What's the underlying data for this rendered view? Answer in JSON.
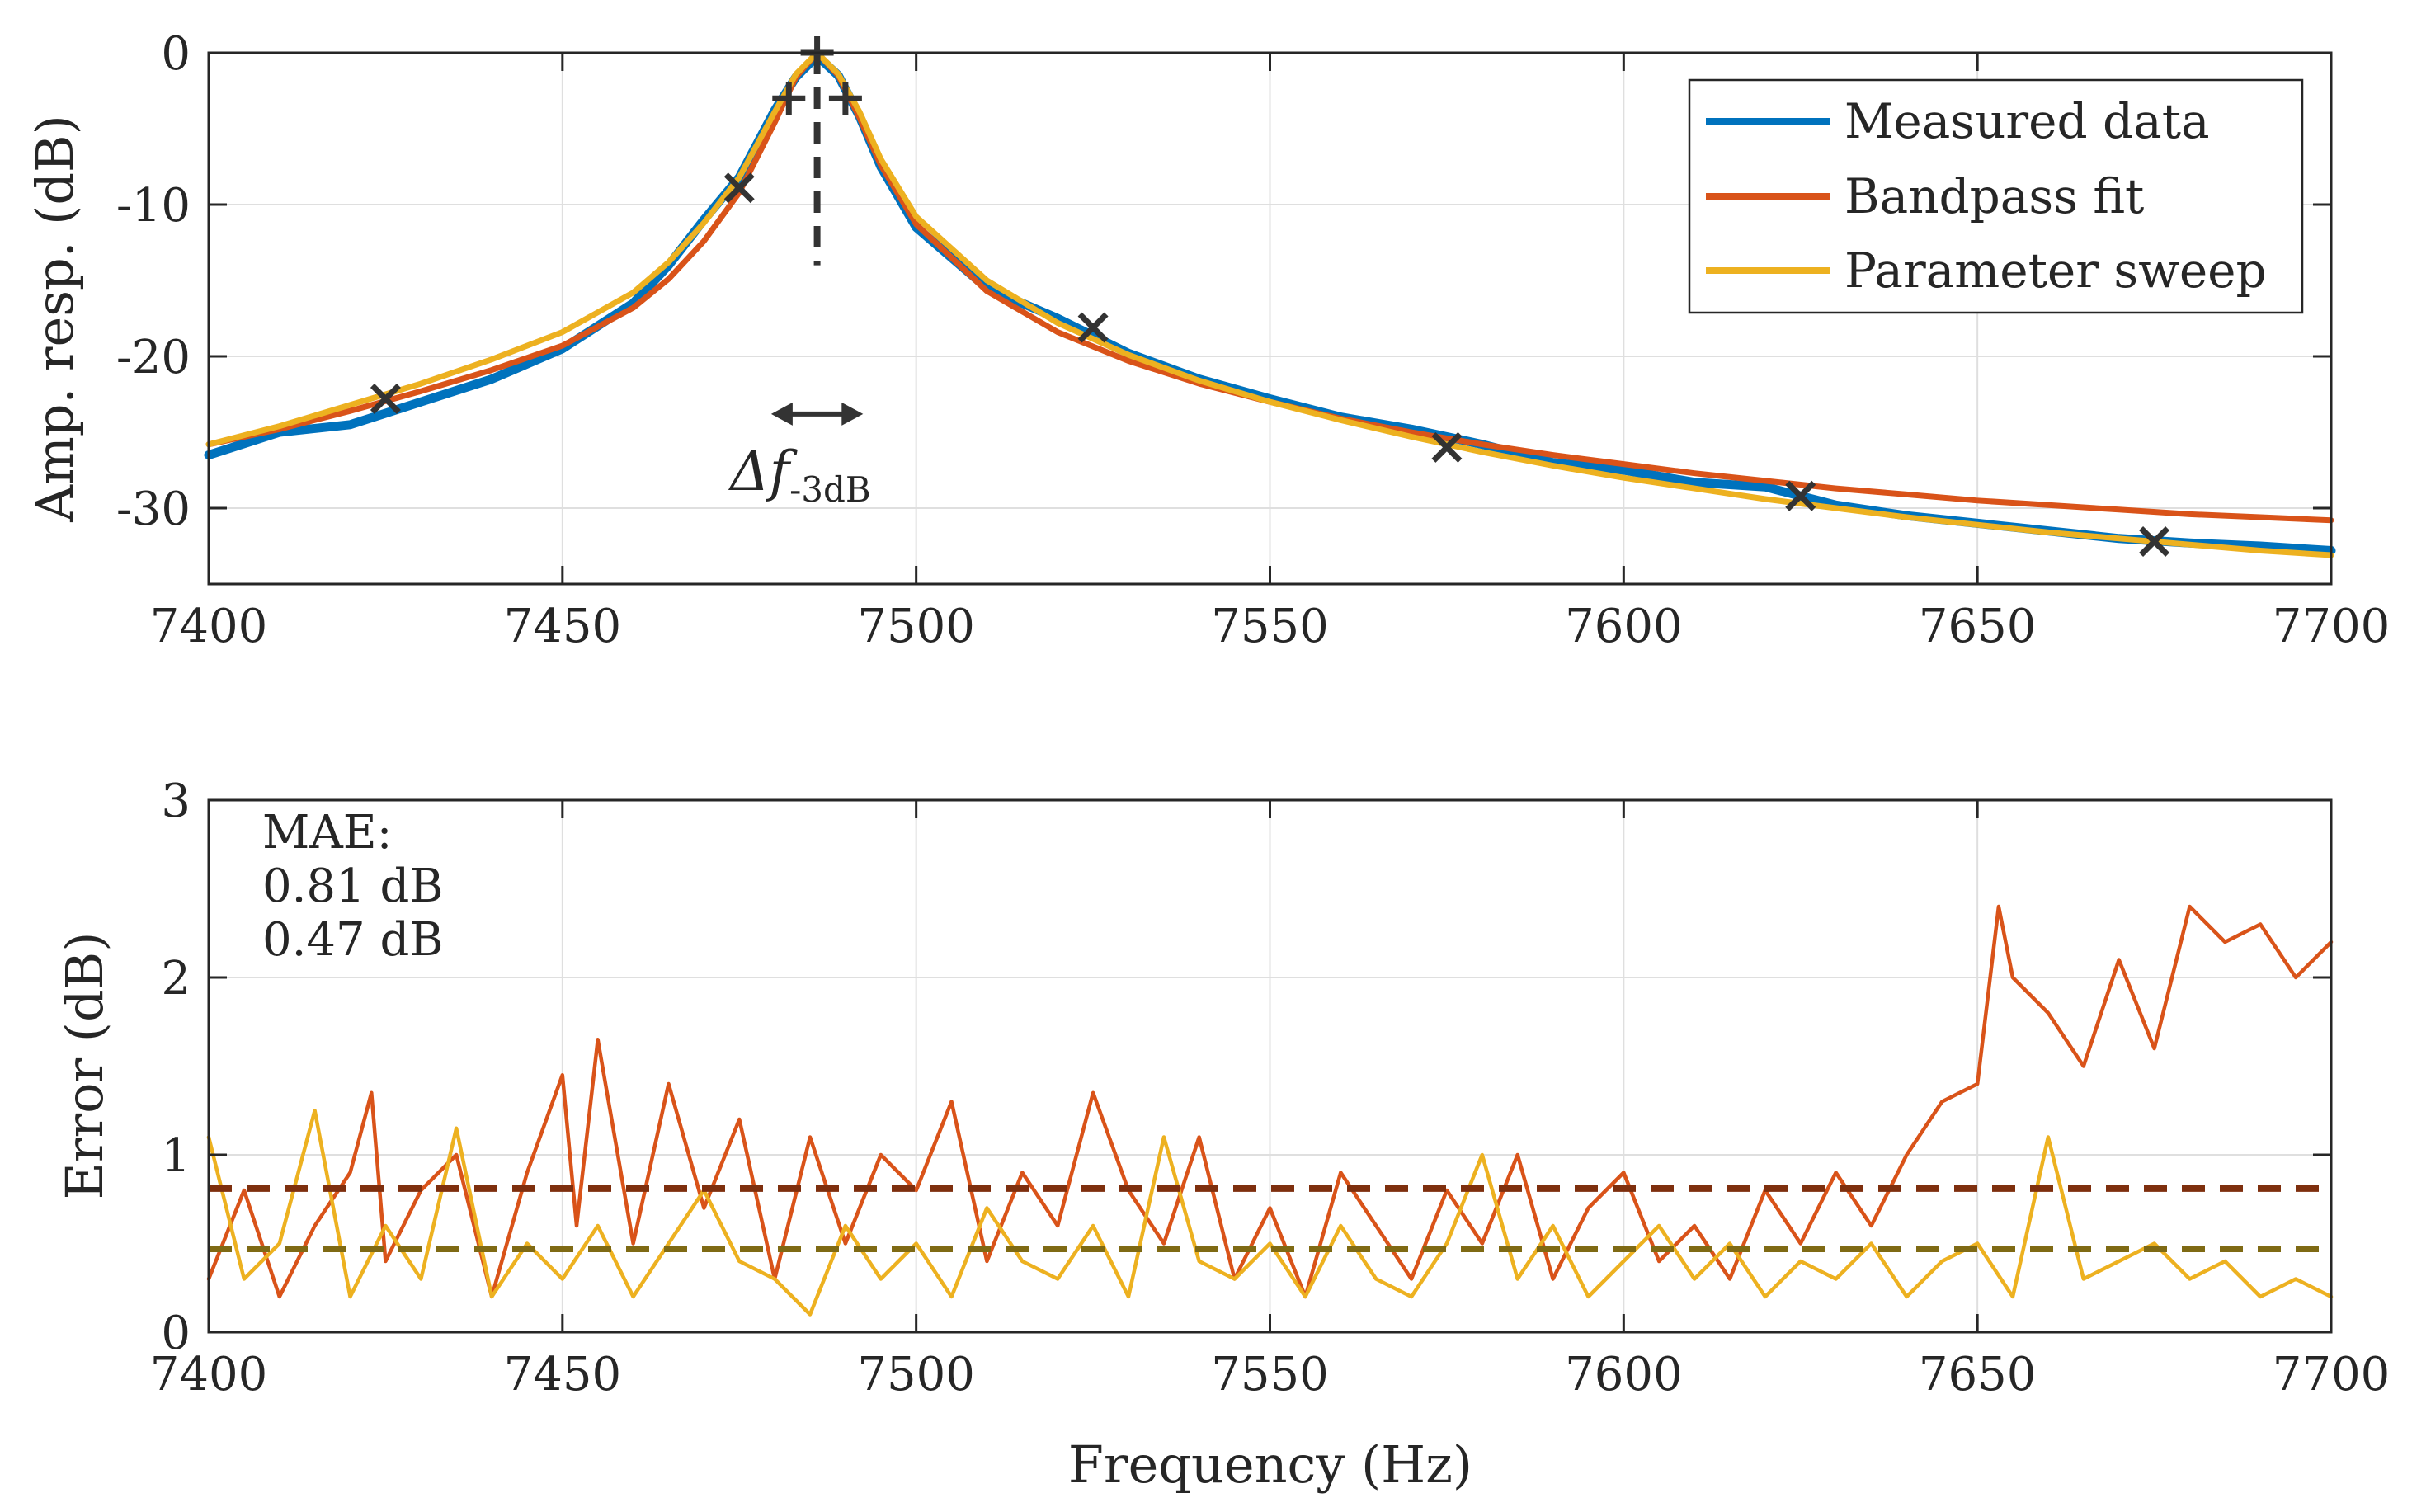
{
  "colors": {
    "measured": "#0072BD",
    "bandpass": "#D95319",
    "sweep": "#EDB120",
    "marker": "#333333",
    "mae_bandpass_line": "#7E2F0E",
    "mae_sweep_line": "#7F6A14",
    "grid": "#dfdfdf",
    "axis": "#262626"
  },
  "chart_data": [
    {
      "id": "amplitude-response",
      "type": "line",
      "xlabel": "",
      "ylabel": "Amp. resp. (dB)",
      "xlim": [
        7400,
        7700
      ],
      "ylim": [
        -35,
        0
      ],
      "xticks": [
        7400,
        7450,
        7500,
        7550,
        7600,
        7650,
        7700
      ],
      "xtick_labels": [
        "7400",
        "7450",
        "7500",
        "7550",
        "7600",
        "7650",
        "7700"
      ],
      "yticks": [
        0,
        -10,
        -20,
        -30
      ],
      "ytick_labels": [
        "0",
        "-10",
        "-20",
        "-30"
      ],
      "grid": true,
      "legend": {
        "location": "top-right",
        "entries": [
          "Measured data",
          "Bandpass fit",
          "Parameter sweep"
        ]
      },
      "series": [
        {
          "name": "Measured data",
          "x": [
            7400,
            7410,
            7420,
            7430,
            7440,
            7450,
            7460,
            7465,
            7470,
            7475,
            7480,
            7483,
            7486,
            7489,
            7492,
            7495,
            7500,
            7510,
            7520,
            7530,
            7540,
            7550,
            7560,
            7570,
            7580,
            7590,
            7600,
            7610,
            7620,
            7630,
            7640,
            7650,
            7660,
            7670,
            7680,
            7690,
            7700
          ],
          "y": [
            -26.5,
            -25.0,
            -24.5,
            -23.0,
            -21.5,
            -19.5,
            -16.5,
            -14.0,
            -11.0,
            -8.2,
            -3.8,
            -1.6,
            -0.2,
            -1.5,
            -4.2,
            -7.5,
            -11.5,
            -15.5,
            -17.5,
            -19.8,
            -21.5,
            -22.8,
            -24.0,
            -24.8,
            -25.8,
            -27.0,
            -27.5,
            -28.3,
            -28.6,
            -29.8,
            -30.5,
            -31.0,
            -31.5,
            -32.0,
            -32.3,
            -32.5,
            -32.8
          ]
        },
        {
          "name": "Bandpass fit",
          "x": [
            7400,
            7410,
            7420,
            7430,
            7440,
            7450,
            7460,
            7465,
            7470,
            7475,
            7480,
            7483,
            7486,
            7489,
            7492,
            7495,
            7500,
            7510,
            7520,
            7530,
            7540,
            7550,
            7560,
            7570,
            7580,
            7590,
            7600,
            7610,
            7620,
            7630,
            7640,
            7650,
            7660,
            7670,
            7680,
            7690,
            7700
          ],
          "y": [
            -25.8,
            -24.8,
            -23.6,
            -22.3,
            -20.9,
            -19.3,
            -16.8,
            -14.9,
            -12.4,
            -9.2,
            -4.6,
            -1.6,
            0.0,
            -1.5,
            -4.3,
            -7.4,
            -11.3,
            -15.7,
            -18.4,
            -20.3,
            -21.8,
            -23.0,
            -24.1,
            -25.0,
            -25.8,
            -26.5,
            -27.1,
            -27.7,
            -28.2,
            -28.7,
            -29.1,
            -29.5,
            -29.8,
            -30.1,
            -30.4,
            -30.6,
            -30.8
          ]
        },
        {
          "name": "Parameter sweep",
          "x": [
            7400,
            7410,
            7420,
            7430,
            7440,
            7450,
            7460,
            7465,
            7470,
            7475,
            7480,
            7483,
            7486,
            7489,
            7492,
            7495,
            7500,
            7510,
            7520,
            7530,
            7540,
            7550,
            7560,
            7570,
            7580,
            7590,
            7600,
            7610,
            7620,
            7630,
            7640,
            7650,
            7660,
            7670,
            7680,
            7690,
            7700
          ],
          "y": [
            -25.8,
            -24.6,
            -23.2,
            -21.8,
            -20.2,
            -18.4,
            -15.8,
            -13.8,
            -11.2,
            -8.2,
            -3.9,
            -1.4,
            0.0,
            -1.4,
            -3.9,
            -7.0,
            -10.8,
            -15.0,
            -17.8,
            -19.9,
            -21.6,
            -23.0,
            -24.2,
            -25.3,
            -26.3,
            -27.2,
            -28.0,
            -28.7,
            -29.4,
            -30.0,
            -30.6,
            -31.1,
            -31.6,
            -32.0,
            -32.4,
            -32.8,
            -33.1
          ]
        },
        {
          "name": "Sample points",
          "style": "x-markers",
          "x": [
            7425,
            7475,
            7525,
            7575,
            7625,
            7675
          ],
          "y": [
            -22.8,
            -8.9,
            -18.1,
            -26.0,
            -29.2,
            -32.2
          ]
        },
        {
          "name": "-3 dB points",
          "style": "plus-markers",
          "x": [
            7482,
            7486,
            7490
          ],
          "y": [
            -3.0,
            0.0,
            -3.0
          ]
        }
      ],
      "annotations": [
        {
          "type": "vline-dashed",
          "x": 7486,
          "y_from": 0,
          "y_to": -14
        },
        {
          "type": "double-arrow",
          "x_from": 7483,
          "x_to": 7489,
          "y": -23.8
        },
        {
          "type": "label",
          "text_main": "Δf",
          "text_sub": "-3dB",
          "x": 7487,
          "y": -27.6
        }
      ]
    },
    {
      "id": "error",
      "type": "line",
      "xlabel": "Frequency (Hz)",
      "ylabel": "Error (dB)",
      "xlim": [
        7400,
        7700
      ],
      "ylim": [
        0,
        3
      ],
      "xticks": [
        7400,
        7450,
        7500,
        7550,
        7600,
        7650,
        7700
      ],
      "xtick_labels": [
        "7400",
        "7450",
        "7500",
        "7550",
        "7600",
        "7650",
        "7700"
      ],
      "yticks": [
        0,
        1,
        2,
        3
      ],
      "ytick_labels": [
        "0",
        "1",
        "2",
        "3"
      ],
      "grid": true,
      "mae": {
        "title": "MAE:",
        "bandpass": "0.81 dB",
        "sweep": "0.47 dB"
      },
      "series": [
        {
          "name": "Bandpass fit error",
          "x": [
            7400,
            7405,
            7410,
            7415,
            7420,
            7423,
            7425,
            7430,
            7435,
            7440,
            7445,
            7450,
            7452,
            7455,
            7460,
            7465,
            7470,
            7475,
            7480,
            7485,
            7490,
            7495,
            7500,
            7505,
            7510,
            7515,
            7520,
            7525,
            7530,
            7535,
            7540,
            7545,
            7550,
            7555,
            7560,
            7565,
            7570,
            7575,
            7580,
            7585,
            7590,
            7595,
            7600,
            7605,
            7610,
            7615,
            7620,
            7625,
            7630,
            7635,
            7640,
            7645,
            7650,
            7653,
            7655,
            7660,
            7665,
            7670,
            7675,
            7680,
            7685,
            7690,
            7695,
            7700
          ],
          "y": [
            0.3,
            0.8,
            0.2,
            0.6,
            0.9,
            1.35,
            0.4,
            0.8,
            1.0,
            0.2,
            0.9,
            1.45,
            0.6,
            1.65,
            0.5,
            1.4,
            0.7,
            1.2,
            0.3,
            1.1,
            0.5,
            1.0,
            0.8,
            1.3,
            0.4,
            0.9,
            0.6,
            1.35,
            0.8,
            0.5,
            1.1,
            0.3,
            0.7,
            0.2,
            0.9,
            0.6,
            0.3,
            0.8,
            0.5,
            1.0,
            0.3,
            0.7,
            0.9,
            0.4,
            0.6,
            0.3,
            0.8,
            0.5,
            0.9,
            0.6,
            1.0,
            1.3,
            1.4,
            2.4,
            2.0,
            1.8,
            1.5,
            2.1,
            1.6,
            2.4,
            2.2,
            2.3,
            2.0,
            2.2
          ]
        },
        {
          "name": "Parameter sweep error",
          "x": [
            7400,
            7405,
            7410,
            7415,
            7420,
            7425,
            7430,
            7435,
            7440,
            7445,
            7450,
            7455,
            7460,
            7465,
            7470,
            7475,
            7480,
            7485,
            7490,
            7495,
            7500,
            7505,
            7510,
            7515,
            7520,
            7525,
            7530,
            7535,
            7540,
            7545,
            7550,
            7555,
            7560,
            7565,
            7570,
            7575,
            7580,
            7585,
            7590,
            7595,
            7600,
            7605,
            7610,
            7615,
            7620,
            7625,
            7630,
            7635,
            7640,
            7645,
            7650,
            7655,
            7660,
            7665,
            7670,
            7675,
            7680,
            7685,
            7690,
            7695,
            7700
          ],
          "y": [
            1.1,
            0.3,
            0.5,
            1.25,
            0.2,
            0.6,
            0.3,
            1.15,
            0.2,
            0.5,
            0.3,
            0.6,
            0.2,
            0.5,
            0.8,
            0.4,
            0.3,
            0.1,
            0.6,
            0.3,
            0.5,
            0.2,
            0.7,
            0.4,
            0.3,
            0.6,
            0.2,
            1.1,
            0.4,
            0.3,
            0.5,
            0.2,
            0.6,
            0.3,
            0.2,
            0.5,
            1.0,
            0.3,
            0.6,
            0.2,
            0.4,
            0.6,
            0.3,
            0.5,
            0.2,
            0.4,
            0.3,
            0.5,
            0.2,
            0.4,
            0.5,
            0.2,
            1.1,
            0.3,
            0.4,
            0.5,
            0.3,
            0.4,
            0.2,
            0.3,
            0.2
          ]
        },
        {
          "name": "MAE bandpass",
          "style": "hline-dashed",
          "y": 0.81
        },
        {
          "name": "MAE sweep",
          "style": "hline-dashed",
          "y": 0.47
        }
      ]
    }
  ]
}
